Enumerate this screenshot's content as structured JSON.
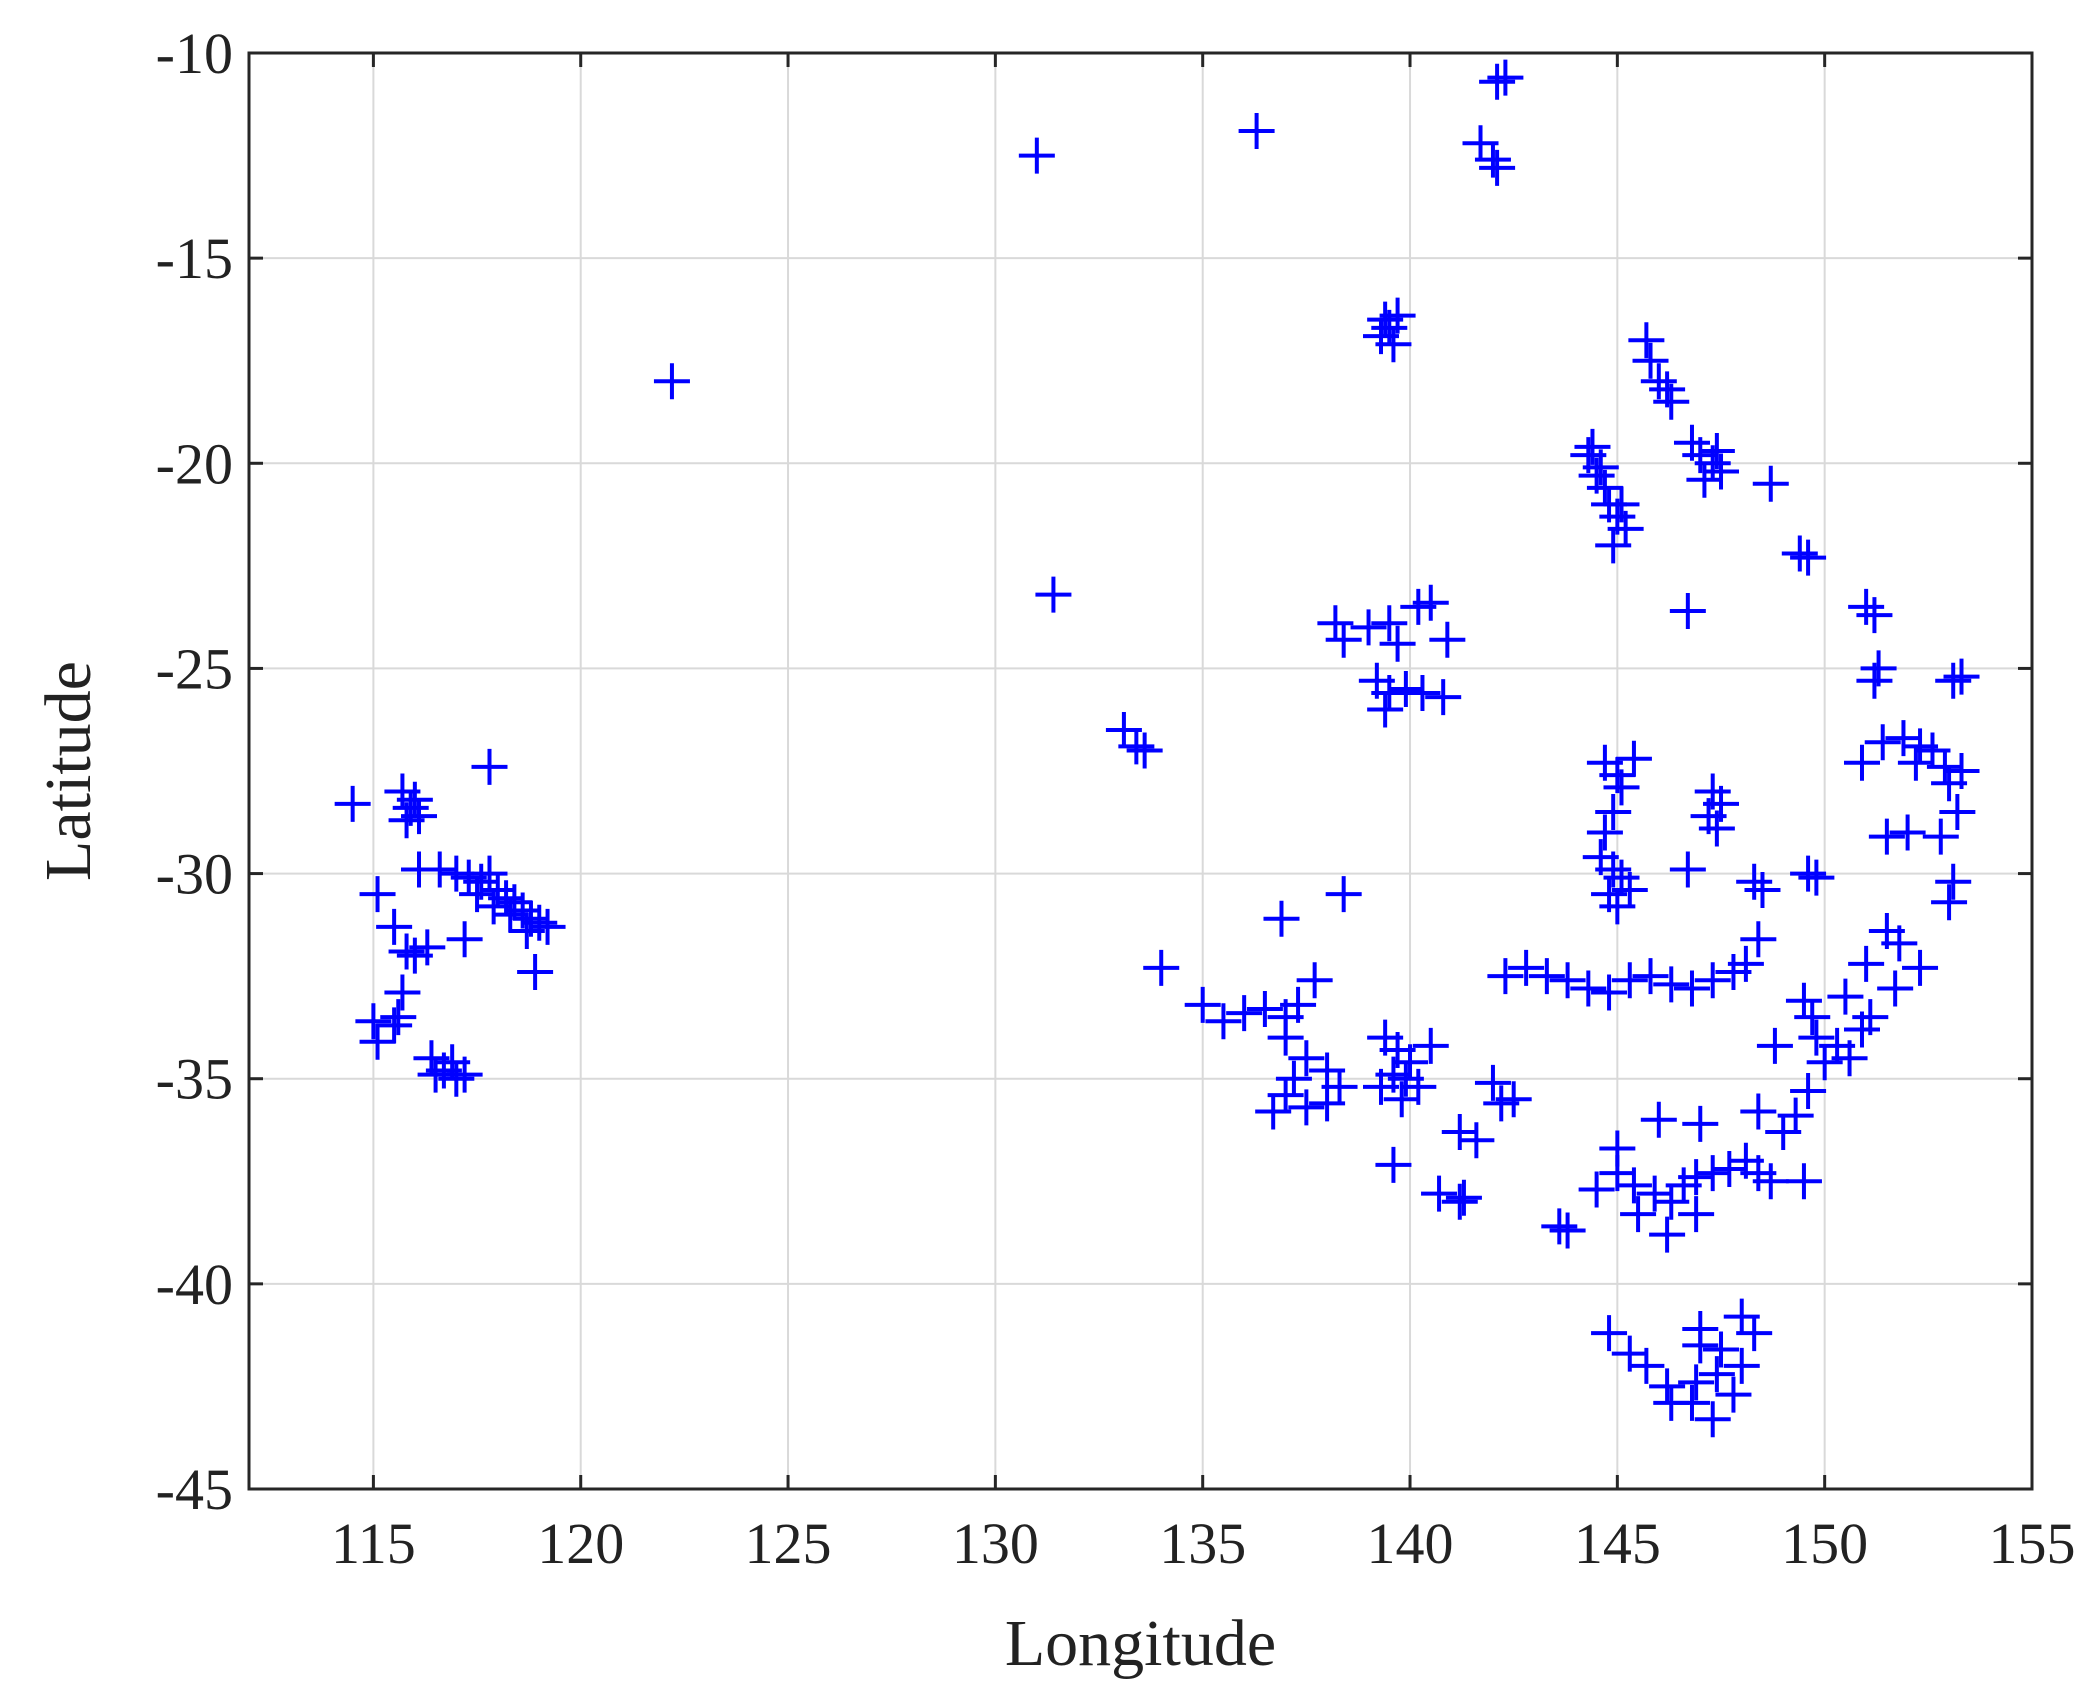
{
  "chart_data": {
    "type": "scatter",
    "title": "",
    "xlabel": "Longitude",
    "ylabel": "Latitude",
    "xlim": [
      112,
      155
    ],
    "ylim": [
      -45,
      -10
    ],
    "xticks": [
      "115",
      "120",
      "125",
      "130",
      "135",
      "140",
      "145",
      "150",
      "155"
    ],
    "yticks": [
      "-10",
      "-15",
      "-20",
      "-25",
      "-30",
      "-35",
      "-40",
      "-45"
    ],
    "grid": true,
    "legend": "none",
    "marker": "plus",
    "color": "#0000ff",
    "series": [
      {
        "points": [
          [
            114.5,
            -28.3
          ],
          [
            115.7,
            -28.0
          ],
          [
            115.9,
            -28.4
          ],
          [
            116.1,
            -28.6
          ],
          [
            115.8,
            -28.7
          ],
          [
            116.0,
            -28.2
          ],
          [
            117.8,
            -27.4
          ],
          [
            115.1,
            -30.5
          ],
          [
            115.5,
            -31.3
          ],
          [
            115.8,
            -31.9
          ],
          [
            116.0,
            -32.0
          ],
          [
            116.3,
            -31.8
          ],
          [
            115.7,
            -32.9
          ],
          [
            115.6,
            -33.5
          ],
          [
            115.0,
            -33.6
          ],
          [
            115.1,
            -34.1
          ],
          [
            115.5,
            -33.7
          ],
          [
            116.1,
            -29.9
          ],
          [
            116.6,
            -29.9
          ],
          [
            117.0,
            -30.0
          ],
          [
            117.3,
            -30.1
          ],
          [
            117.6,
            -30.2
          ],
          [
            117.8,
            -30.0
          ],
          [
            118.0,
            -30.4
          ],
          [
            118.2,
            -30.6
          ],
          [
            118.4,
            -30.7
          ],
          [
            118.6,
            -30.9
          ],
          [
            118.8,
            -31.1
          ],
          [
            119.0,
            -31.2
          ],
          [
            119.2,
            -31.3
          ],
          [
            117.9,
            -30.8
          ],
          [
            118.3,
            -31.0
          ],
          [
            118.7,
            -31.4
          ],
          [
            117.5,
            -30.5
          ],
          [
            117.2,
            -31.6
          ],
          [
            118.9,
            -32.4
          ],
          [
            116.4,
            -34.5
          ],
          [
            116.7,
            -34.8
          ],
          [
            117.0,
            -35.0
          ],
          [
            116.9,
            -34.6
          ],
          [
            116.5,
            -34.9
          ],
          [
            117.2,
            -34.9
          ],
          [
            122.2,
            -18.0
          ],
          [
            131.0,
            -12.5
          ],
          [
            136.3,
            -11.9
          ],
          [
            141.7,
            -12.2
          ],
          [
            142.0,
            -12.6
          ],
          [
            142.1,
            -12.8
          ],
          [
            142.3,
            -10.6
          ],
          [
            142.1,
            -10.7
          ],
          [
            139.4,
            -16.5
          ],
          [
            139.5,
            -16.7
          ],
          [
            139.7,
            -16.4
          ],
          [
            139.3,
            -16.9
          ],
          [
            139.6,
            -17.1
          ],
          [
            131.4,
            -23.2
          ],
          [
            133.1,
            -26.5
          ],
          [
            133.4,
            -26.9
          ],
          [
            133.6,
            -27.0
          ],
          [
            138.2,
            -23.9
          ],
          [
            138.4,
            -24.3
          ],
          [
            139.0,
            -24.0
          ],
          [
            139.5,
            -23.9
          ],
          [
            140.2,
            -23.5
          ],
          [
            140.5,
            -23.4
          ],
          [
            140.9,
            -24.3
          ],
          [
            139.7,
            -24.4
          ],
          [
            139.2,
            -25.3
          ],
          [
            139.5,
            -25.6
          ],
          [
            139.9,
            -25.5
          ],
          [
            140.3,
            -25.6
          ],
          [
            140.8,
            -25.7
          ],
          [
            139.4,
            -26.0
          ],
          [
            145.7,
            -17.0
          ],
          [
            145.8,
            -17.5
          ],
          [
            146.0,
            -18.0
          ],
          [
            146.2,
            -18.2
          ],
          [
            146.3,
            -18.5
          ],
          [
            144.3,
            -19.8
          ],
          [
            144.5,
            -20.3
          ],
          [
            144.7,
            -20.6
          ],
          [
            144.8,
            -21.0
          ],
          [
            145.0,
            -21.3
          ],
          [
            145.2,
            -21.6
          ],
          [
            144.9,
            -22.0
          ],
          [
            144.6,
            -20.1
          ],
          [
            145.1,
            -21.0
          ],
          [
            144.4,
            -19.6
          ],
          [
            146.8,
            -19.5
          ],
          [
            147.0,
            -19.8
          ],
          [
            147.3,
            -20.0
          ],
          [
            147.5,
            -20.2
          ],
          [
            147.1,
            -20.4
          ],
          [
            147.4,
            -19.7
          ],
          [
            148.7,
            -20.5
          ],
          [
            146.7,
            -23.6
          ],
          [
            149.4,
            -22.2
          ],
          [
            149.6,
            -22.3
          ],
          [
            151.0,
            -23.5
          ],
          [
            151.2,
            -23.7
          ],
          [
            151.3,
            -25.0
          ],
          [
            151.2,
            -25.3
          ],
          [
            153.1,
            -25.3
          ],
          [
            153.3,
            -25.2
          ],
          [
            150.9,
            -27.3
          ],
          [
            151.4,
            -26.8
          ],
          [
            151.9,
            -26.7
          ],
          [
            152.3,
            -26.9
          ],
          [
            152.6,
            -27.0
          ],
          [
            152.9,
            -27.4
          ],
          [
            153.0,
            -27.8
          ],
          [
            153.3,
            -27.5
          ],
          [
            153.2,
            -28.5
          ],
          [
            152.2,
            -27.3
          ],
          [
            151.5,
            -29.1
          ],
          [
            152.0,
            -29.0
          ],
          [
            152.8,
            -29.1
          ],
          [
            153.1,
            -30.2
          ],
          [
            153.0,
            -30.7
          ],
          [
            151.5,
            -31.4
          ],
          [
            151.8,
            -31.7
          ],
          [
            152.3,
            -32.3
          ],
          [
            151.7,
            -32.8
          ],
          [
            151.0,
            -32.2
          ],
          [
            144.7,
            -27.3
          ],
          [
            145.0,
            -27.6
          ],
          [
            145.4,
            -27.2
          ],
          [
            145.1,
            -27.9
          ],
          [
            144.9,
            -28.5
          ],
          [
            144.7,
            -29.0
          ],
          [
            147.3,
            -28.0
          ],
          [
            147.5,
            -28.3
          ],
          [
            147.2,
            -28.6
          ],
          [
            147.4,
            -28.9
          ],
          [
            144.6,
            -29.6
          ],
          [
            144.9,
            -29.9
          ],
          [
            145.1,
            -30.1
          ],
          [
            145.3,
            -30.4
          ],
          [
            144.8,
            -30.5
          ],
          [
            145.0,
            -30.8
          ],
          [
            146.7,
            -29.9
          ],
          [
            148.3,
            -30.2
          ],
          [
            148.5,
            -30.4
          ],
          [
            149.6,
            -30.0
          ],
          [
            149.8,
            -30.1
          ],
          [
            142.3,
            -32.5
          ],
          [
            142.8,
            -32.3
          ],
          [
            143.3,
            -32.5
          ],
          [
            143.8,
            -32.6
          ],
          [
            144.3,
            -32.8
          ],
          [
            144.8,
            -32.9
          ],
          [
            145.3,
            -32.6
          ],
          [
            145.8,
            -32.5
          ],
          [
            146.3,
            -32.7
          ],
          [
            146.8,
            -32.8
          ],
          [
            147.3,
            -32.6
          ],
          [
            147.8,
            -32.4
          ],
          [
            148.1,
            -32.2
          ],
          [
            148.4,
            -31.6
          ],
          [
            134.0,
            -32.3
          ],
          [
            136.9,
            -31.1
          ],
          [
            138.4,
            -30.5
          ],
          [
            135.0,
            -33.2
          ],
          [
            135.5,
            -33.6
          ],
          [
            136.0,
            -33.4
          ],
          [
            136.5,
            -33.3
          ],
          [
            137.0,
            -33.5
          ],
          [
            137.3,
            -33.2
          ],
          [
            137.7,
            -32.6
          ],
          [
            137.0,
            -34.0
          ],
          [
            137.5,
            -34.5
          ],
          [
            137.2,
            -35.0
          ],
          [
            137.0,
            -35.4
          ],
          [
            137.5,
            -35.7
          ],
          [
            138.0,
            -35.6
          ],
          [
            138.3,
            -35.2
          ],
          [
            138.0,
            -34.8
          ],
          [
            136.7,
            -35.8
          ],
          [
            139.4,
            -34.0
          ],
          [
            139.7,
            -34.3
          ],
          [
            140.0,
            -34.6
          ],
          [
            139.6,
            -34.9
          ],
          [
            139.3,
            -35.2
          ],
          [
            139.8,
            -35.5
          ],
          [
            140.5,
            -34.2
          ],
          [
            140.2,
            -35.2
          ],
          [
            139.9,
            -35.0
          ],
          [
            139.6,
            -37.1
          ],
          [
            141.2,
            -36.3
          ],
          [
            141.6,
            -36.5
          ],
          [
            142.0,
            -35.1
          ],
          [
            142.2,
            -35.6
          ],
          [
            142.5,
            -35.5
          ],
          [
            140.7,
            -37.8
          ],
          [
            141.2,
            -38.0
          ],
          [
            141.3,
            -37.9
          ],
          [
            143.6,
            -38.6
          ],
          [
            143.8,
            -38.7
          ],
          [
            144.5,
            -37.7
          ],
          [
            145.0,
            -37.3
          ],
          [
            145.4,
            -37.6
          ],
          [
            145.9,
            -37.8
          ],
          [
            146.3,
            -38.0
          ],
          [
            146.6,
            -37.6
          ],
          [
            146.9,
            -37.4
          ],
          [
            147.3,
            -37.3
          ],
          [
            147.7,
            -37.2
          ],
          [
            148.1,
            -37.0
          ],
          [
            148.4,
            -37.3
          ],
          [
            148.7,
            -37.5
          ],
          [
            146.2,
            -38.8
          ],
          [
            145.5,
            -38.3
          ],
          [
            146.9,
            -38.3
          ],
          [
            146.0,
            -36.0
          ],
          [
            147.0,
            -36.1
          ],
          [
            148.4,
            -35.8
          ],
          [
            148.8,
            -34.2
          ],
          [
            149.0,
            -36.3
          ],
          [
            149.5,
            -37.5
          ],
          [
            145.0,
            -36.7
          ],
          [
            149.5,
            -33.1
          ],
          [
            149.7,
            -33.5
          ],
          [
            149.8,
            -34.0
          ],
          [
            150.3,
            -34.2
          ],
          [
            150.0,
            -34.6
          ],
          [
            150.6,
            -34.5
          ],
          [
            150.9,
            -33.8
          ],
          [
            151.1,
            -33.5
          ],
          [
            150.5,
            -33.0
          ],
          [
            149.6,
            -35.3
          ],
          [
            149.3,
            -35.9
          ],
          [
            144.8,
            -41.2
          ],
          [
            145.3,
            -41.7
          ],
          [
            145.7,
            -42.0
          ],
          [
            146.2,
            -42.5
          ],
          [
            146.8,
            -42.9
          ],
          [
            147.3,
            -43.3
          ],
          [
            147.8,
            -42.7
          ],
          [
            148.0,
            -42.0
          ],
          [
            147.5,
            -41.6
          ],
          [
            147.0,
            -41.5
          ],
          [
            148.0,
            -40.8
          ],
          [
            148.3,
            -41.2
          ],
          [
            146.3,
            -42.9
          ],
          [
            147.0,
            -41.1
          ],
          [
            147.4,
            -42.2
          ],
          [
            146.9,
            -42.4
          ]
        ]
      }
    ]
  }
}
